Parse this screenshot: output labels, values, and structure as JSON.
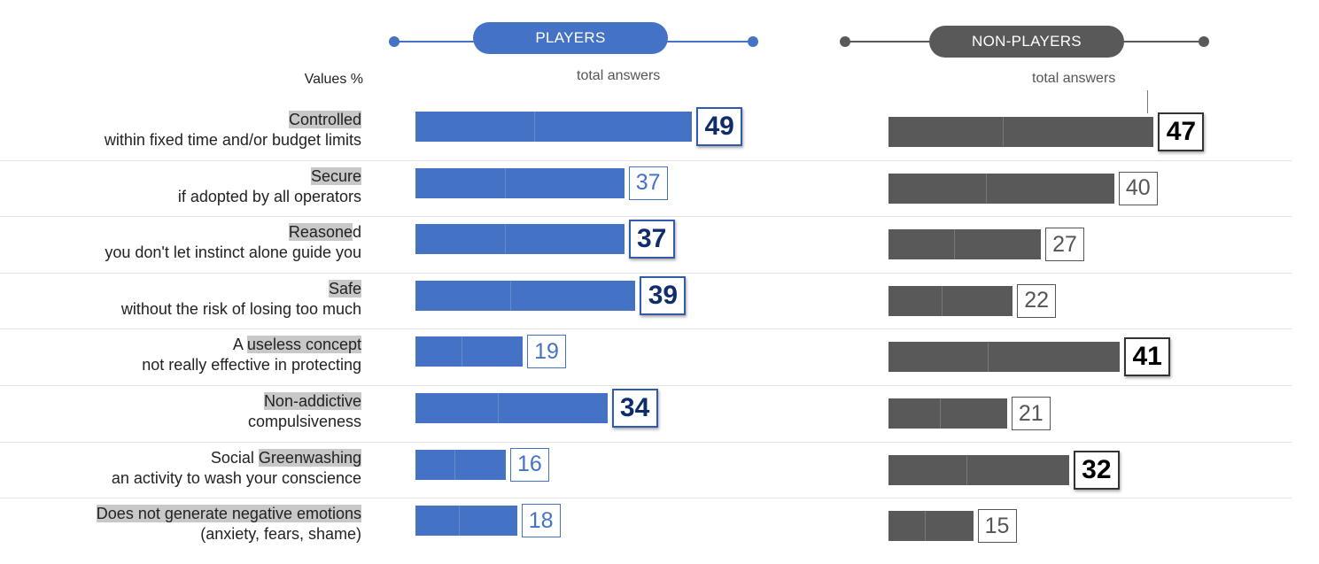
{
  "headers": {
    "players": "PLAYERS",
    "non_players": "NON-PLAYERS",
    "total_answers": "total answers",
    "values_label": "Values %"
  },
  "colors": {
    "players": "#4472c4",
    "non_players": "#595959",
    "highlight": "#c8c8c8"
  },
  "chart_data": {
    "type": "bar",
    "orientation": "horizontal",
    "unit": "%",
    "categories": [
      {
        "highlight": "Controlled",
        "before": "",
        "after": "",
        "sub": "within fixed time and/or budget limits"
      },
      {
        "highlight": "Secure",
        "before": "",
        "after": "",
        "sub": "if adopted by all operators"
      },
      {
        "highlight": "Reasone",
        "before": "",
        "after": "d",
        "sub": "you don't let instinct alone guide you"
      },
      {
        "highlight": "Safe",
        "before": "",
        "after": "",
        "sub": "without the risk of losing too much"
      },
      {
        "highlight": "useless concept",
        "before": "A ",
        "after": "",
        "sub": "not really effective in protecting"
      },
      {
        "highlight": "Non-addictive",
        "before": "",
        "after": "",
        "sub": "compulsiveness"
      },
      {
        "highlight": "Greenwashing",
        "before": "Social ",
        "after": "",
        "sub": "an activity to wash your conscience"
      },
      {
        "highlight": "Does not generate negative emotions",
        "before": "",
        "after": "",
        "sub": "(anxiety, fears, shame)"
      }
    ],
    "series": [
      {
        "name": "PLAYERS",
        "values": [
          49,
          37,
          37,
          39,
          19,
          34,
          16,
          18
        ],
        "emphasized": [
          true,
          false,
          true,
          true,
          false,
          true,
          false,
          false
        ]
      },
      {
        "name": "NON-PLAYERS",
        "values": [
          47,
          40,
          27,
          22,
          41,
          21,
          32,
          15
        ],
        "emphasized": [
          true,
          false,
          false,
          false,
          true,
          false,
          true,
          false
        ]
      }
    ]
  }
}
